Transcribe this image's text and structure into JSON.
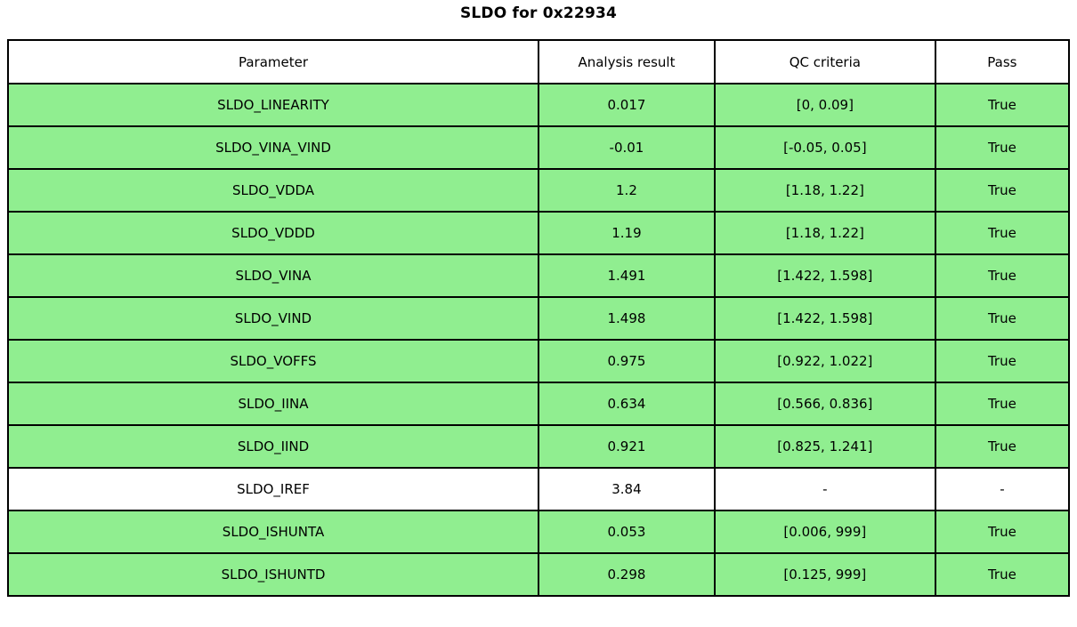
{
  "title": "SLDO for 0x22934",
  "colors": {
    "pass_row": "#90ee90",
    "neutral_row": "#ffffff",
    "border": "#000000",
    "text": "#000000"
  },
  "chart_data": {
    "type": "table",
    "title": "SLDO for 0x22934",
    "columns": [
      "Parameter",
      "Analysis result",
      "QC criteria",
      "Pass"
    ],
    "rows": [
      {
        "parameter": "SLDO_LINEARITY",
        "result": "0.017",
        "criteria": "[0, 0.09]",
        "pass": "True",
        "highlight": true
      },
      {
        "parameter": "SLDO_VINA_VIND",
        "result": "-0.01",
        "criteria": "[-0.05, 0.05]",
        "pass": "True",
        "highlight": true
      },
      {
        "parameter": "SLDO_VDDA",
        "result": "1.2",
        "criteria": "[1.18, 1.22]",
        "pass": "True",
        "highlight": true
      },
      {
        "parameter": "SLDO_VDDD",
        "result": "1.19",
        "criteria": "[1.18, 1.22]",
        "pass": "True",
        "highlight": true
      },
      {
        "parameter": "SLDO_VINA",
        "result": "1.491",
        "criteria": "[1.422, 1.598]",
        "pass": "True",
        "highlight": true
      },
      {
        "parameter": "SLDO_VIND",
        "result": "1.498",
        "criteria": "[1.422, 1.598]",
        "pass": "True",
        "highlight": true
      },
      {
        "parameter": "SLDO_VOFFS",
        "result": "0.975",
        "criteria": "[0.922, 1.022]",
        "pass": "True",
        "highlight": true
      },
      {
        "parameter": "SLDO_IINA",
        "result": "0.634",
        "criteria": "[0.566, 0.836]",
        "pass": "True",
        "highlight": true
      },
      {
        "parameter": "SLDO_IIND",
        "result": "0.921",
        "criteria": "[0.825, 1.241]",
        "pass": "True",
        "highlight": true
      },
      {
        "parameter": "SLDO_IREF",
        "result": "3.84",
        "criteria": "-",
        "pass": "-",
        "highlight": false
      },
      {
        "parameter": "SLDO_ISHUNTA",
        "result": "0.053",
        "criteria": "[0.006, 999]",
        "pass": "True",
        "highlight": true
      },
      {
        "parameter": "SLDO_ISHUNTD",
        "result": "0.298",
        "criteria": "[0.125, 999]",
        "pass": "True",
        "highlight": true
      }
    ],
    "legend": "none",
    "grid": "full-cell-borders"
  }
}
